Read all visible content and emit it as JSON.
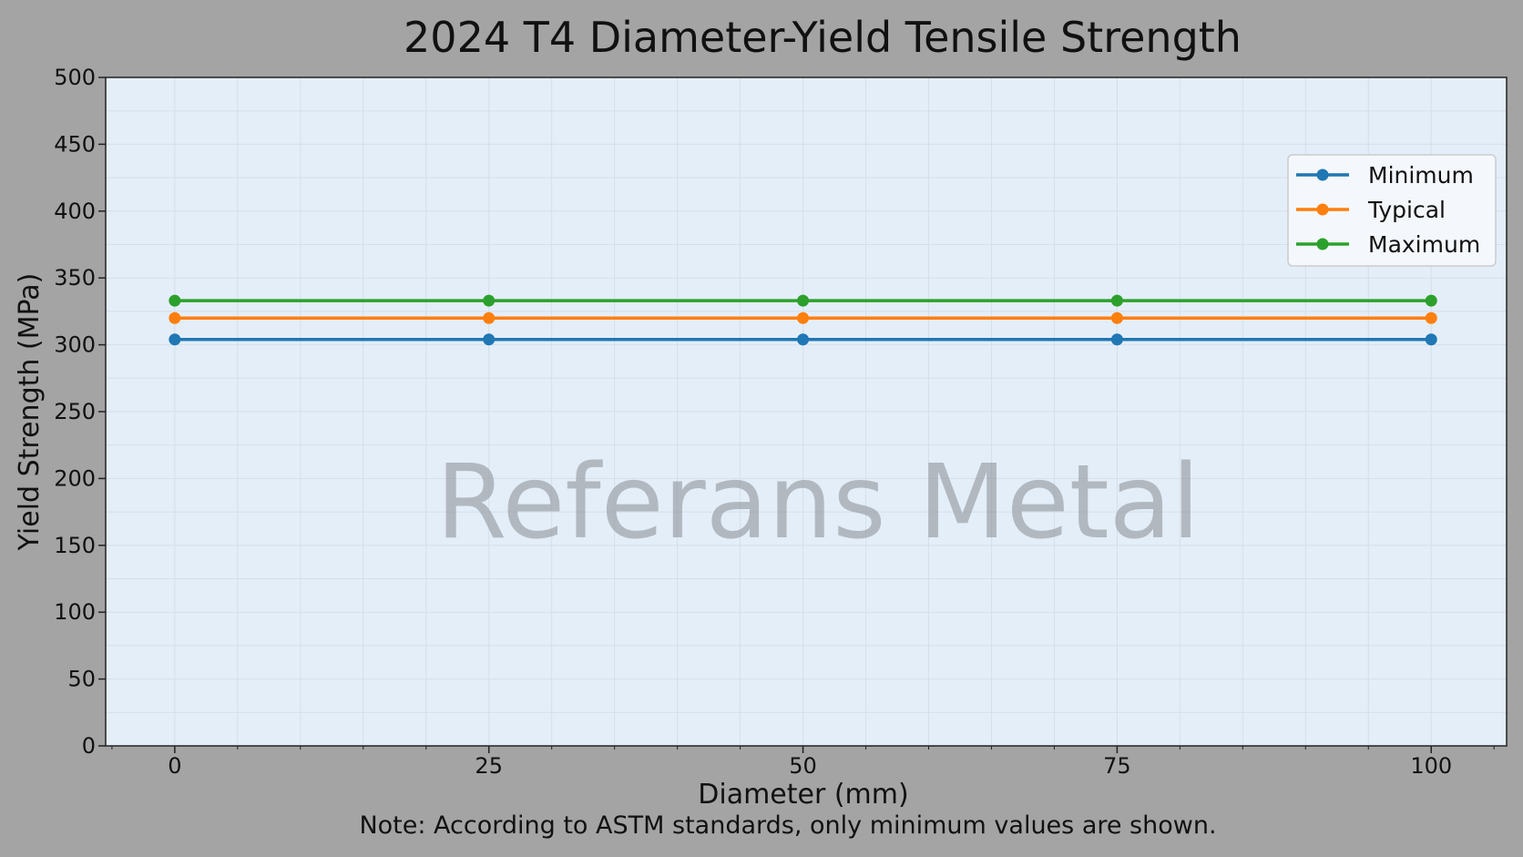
{
  "chart_data": {
    "type": "line",
    "title": "2024 T4 Diameter-Yield Tensile Strength",
    "xlabel": "Diameter (mm)",
    "ylabel": "Yield Strength (MPa)",
    "x": [
      0,
      25,
      50,
      75,
      100
    ],
    "xticks": [
      0,
      25,
      50,
      75,
      100
    ],
    "yticks": [
      0,
      50,
      100,
      150,
      200,
      250,
      300,
      350,
      400,
      450,
      500
    ],
    "xlim": [
      -5.5,
      106
    ],
    "ylim": [
      0,
      500
    ],
    "grid": true,
    "legend_position": "upper right",
    "series": [
      {
        "name": "Minimum",
        "values": [
          304,
          304,
          304,
          304,
          304
        ],
        "color": "#1f77b4"
      },
      {
        "name": "Typical",
        "values": [
          320,
          320,
          320,
          320,
          320
        ],
        "color": "#ff7f0e"
      },
      {
        "name": "Maximum",
        "values": [
          333,
          333,
          333,
          333,
          333
        ],
        "color": "#2ca02c"
      }
    ],
    "note": "Note: According to ASTM standards, only minimum values are shown.",
    "watermark": "Referans Metal"
  },
  "colors": {
    "page_background": "#a4a4a4",
    "plot_background": "#e4eef8"
  }
}
